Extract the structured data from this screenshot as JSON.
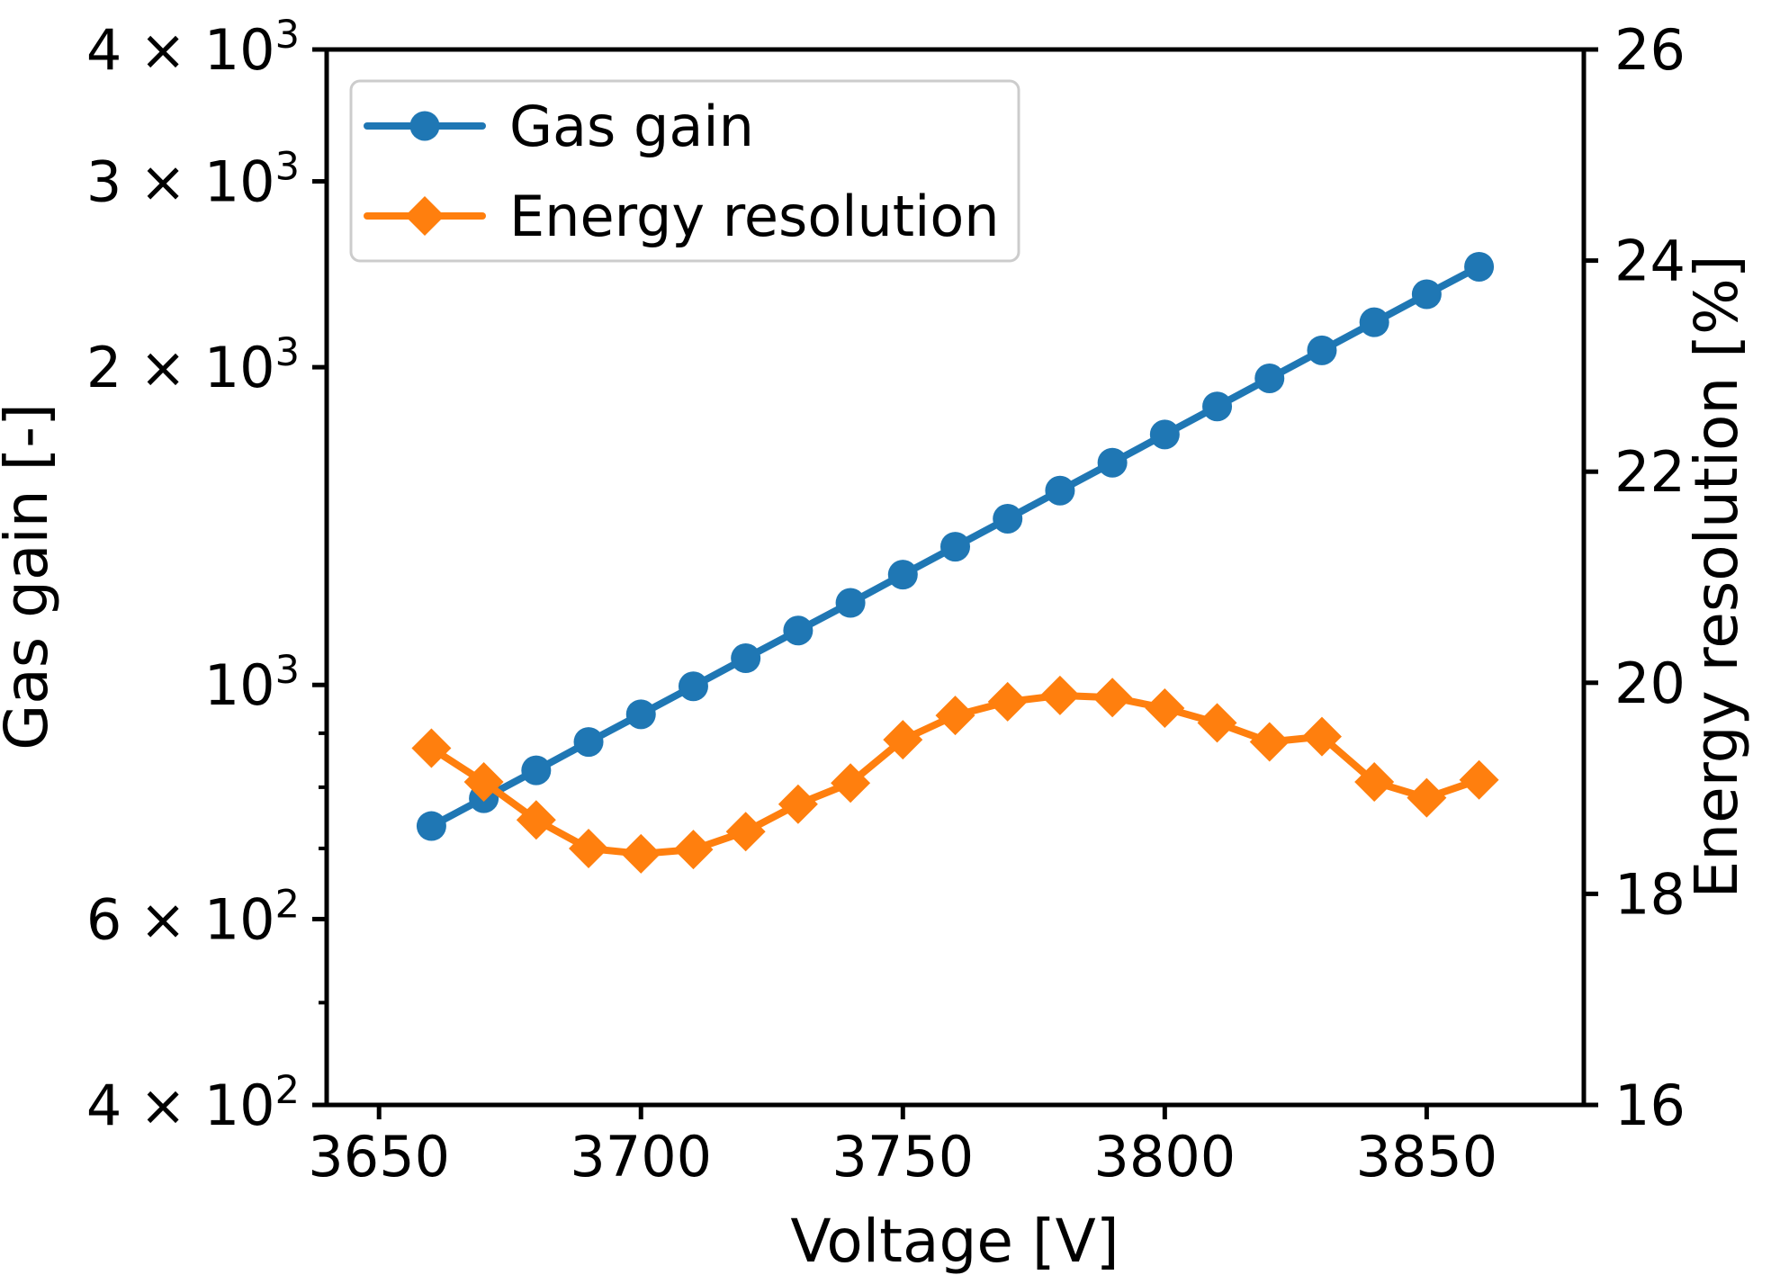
{
  "figure": {
    "xlabel": "Voltage [V]",
    "ylabel_left": "Gas gain [-]",
    "ylabel_right": "Energy resolution [%]",
    "legend": [
      {
        "label": "Gas gain",
        "color": "#1f77b4",
        "marker": "circle"
      },
      {
        "label": "Energy resolution",
        "color": "#ff7f0e",
        "marker": "diamond"
      }
    ]
  },
  "colors": {
    "gas_gain": "#1f77b4",
    "energy_resolution": "#ff7f0e",
    "legend_border": "#cccccc",
    "axis": "#000000"
  },
  "chart_data": {
    "type": "line",
    "x": [
      3660,
      3670,
      3680,
      3690,
      3700,
      3710,
      3720,
      3730,
      3740,
      3750,
      3760,
      3770,
      3780,
      3790,
      3800,
      3810,
      3820,
      3830,
      3840,
      3850,
      3860
    ],
    "series": [
      {
        "name": "Gas gain",
        "axis": "left",
        "color": "#1f77b4",
        "marker": "circle",
        "values": [
          735,
          781,
          830,
          883,
          938,
          997,
          1060,
          1126,
          1196,
          1272,
          1352,
          1437,
          1528,
          1624,
          1727,
          1836,
          1952,
          2075,
          2206,
          2345,
          2490
        ]
      },
      {
        "name": "Energy resolution",
        "axis": "right",
        "color": "#ff7f0e",
        "marker": "diamond",
        "values": [
          19.38,
          19.06,
          18.7,
          18.43,
          18.38,
          18.42,
          18.59,
          18.85,
          19.05,
          19.46,
          19.69,
          19.82,
          19.88,
          19.86,
          19.76,
          19.62,
          19.44,
          19.49,
          19.06,
          18.91,
          19.08
        ]
      }
    ],
    "x_axis": {
      "label": "Voltage [V]",
      "range": [
        3640,
        3880
      ],
      "ticks": [
        3650,
        3700,
        3750,
        3800,
        3850
      ]
    },
    "y_left": {
      "label": "Gas gain [-]",
      "scale": "log",
      "range": [
        400,
        4000
      ],
      "major_ticks": [
        {
          "value": 400,
          "base": "4 × 10",
          "exp": "2"
        },
        {
          "value": 600,
          "base": "6 × 10",
          "exp": "2"
        },
        {
          "value": 1000,
          "base": "10",
          "exp": "3"
        },
        {
          "value": 2000,
          "base": "2 × 10",
          "exp": "3"
        },
        {
          "value": 3000,
          "base": "3 × 10",
          "exp": "3"
        },
        {
          "value": 4000,
          "base": "4 × 10",
          "exp": "3"
        }
      ],
      "minor_ticks": [
        500,
        700,
        800,
        900
      ]
    },
    "y_right": {
      "label": "Energy resolution [%]",
      "scale": "linear",
      "range": [
        16,
        26
      ],
      "ticks": [
        16,
        18,
        20,
        22,
        24,
        26
      ]
    },
    "legend_position": "upper left",
    "grid": false
  }
}
